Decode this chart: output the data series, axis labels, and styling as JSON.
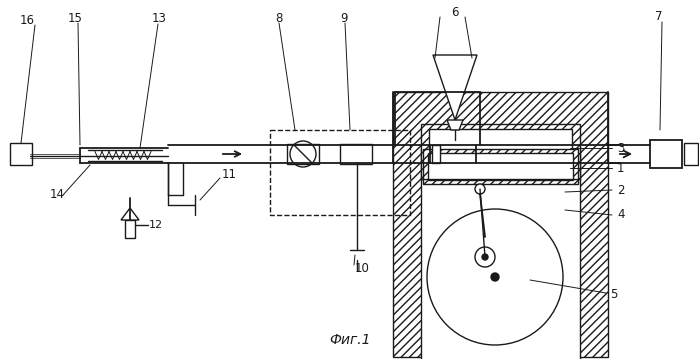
{
  "caption": "Фиг.1",
  "bg": "#ffffff",
  "lc": "#1a1a1a",
  "fig_w": 6.99,
  "fig_h": 3.59,
  "dpi": 100
}
